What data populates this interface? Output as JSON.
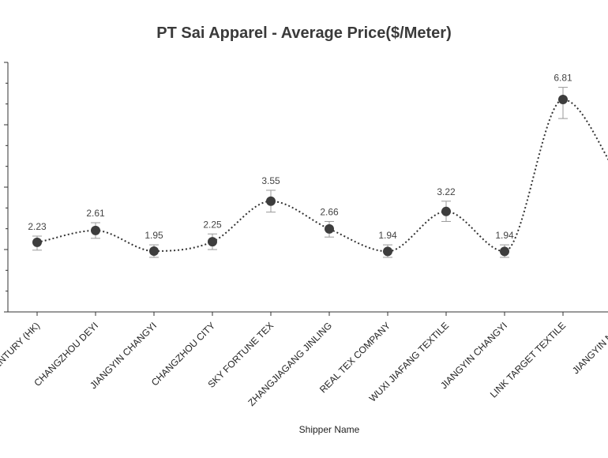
{
  "chart_data": {
    "type": "line",
    "title": "PT Sai Apparel - Average Price($/Meter)",
    "xlabel": "Shipper Name",
    "ylabel": "",
    "ylim": [
      0,
      8
    ],
    "categories": [
      "CENTURY (HK)",
      "CHANGZHOU DEYI",
      "JIANGYIN CHANGYI",
      "CHANGZHOU CITY",
      "SKY FORTUNE TEX",
      "ZHANGJIAGANG JINLING",
      "REAL TEX COMPANY",
      "WUXI JIAFANG TEXTILE",
      "JIANGYIN CHANGYI",
      "LINK TARGET TEXTILE",
      "JIANGYIN NEW"
    ],
    "values": [
      2.23,
      2.61,
      1.95,
      2.25,
      3.55,
      2.66,
      1.94,
      3.22,
      1.94,
      6.81,
      4.2
    ],
    "value_labels": [
      "2.23",
      "2.61",
      "1.95",
      "2.25",
      "3.55",
      "2.66",
      "1.94",
      "3.22",
      "1.94",
      "6.81",
      ""
    ],
    "error_low": [
      1.98,
      2.36,
      1.75,
      2.0,
      3.2,
      2.4,
      1.75,
      2.9,
      1.75,
      6.2,
      4.0
    ],
    "error_high": [
      2.43,
      2.86,
      2.15,
      2.5,
      3.9,
      2.9,
      2.15,
      3.55,
      2.15,
      7.2,
      4.4
    ],
    "grid": false,
    "legend": "none",
    "colors": {
      "line": "#333333",
      "marker": "#3d3d3d",
      "error_bar": "#999999",
      "axis": "#333333"
    }
  }
}
